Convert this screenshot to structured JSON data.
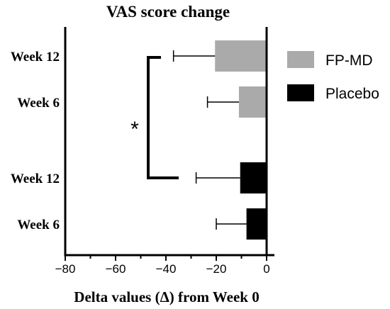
{
  "chart_data": {
    "type": "bar",
    "orientation": "horizontal",
    "title": "VAS score change",
    "xlabel": "Delta values (Δ) from Week 0",
    "ylabel": "",
    "xlim": [
      -80,
      0
    ],
    "xticks": [
      -80,
      -60,
      -40,
      -20,
      0
    ],
    "xtick_labels": [
      "−80",
      "−60",
      "−40",
      "−20",
      "0"
    ],
    "grid": false,
    "legend_position": "right",
    "bars": [
      {
        "category": "Week 12",
        "series": "FP-MD",
        "value": -20.5,
        "error": 16.5,
        "color": "#aaaaaa"
      },
      {
        "category": "Week 6",
        "series": "FP-MD",
        "value": -11,
        "error": 12.5,
        "color": "#aaaaaa"
      },
      {
        "category": "Week 12",
        "series": "Placebo",
        "value": -10.5,
        "error": 17.5,
        "color": "#000000"
      },
      {
        "category": "Week 6",
        "series": "Placebo",
        "value": -8,
        "error": 12,
        "color": "#000000"
      }
    ],
    "legend": [
      {
        "name": "FP-MD",
        "color": "#aaaaaa"
      },
      {
        "name": "Placebo",
        "color": "#000000"
      }
    ],
    "annotations": [
      {
        "text": "*",
        "between": [
          "FP-MD Week 12",
          "Placebo Week 12"
        ]
      }
    ]
  }
}
